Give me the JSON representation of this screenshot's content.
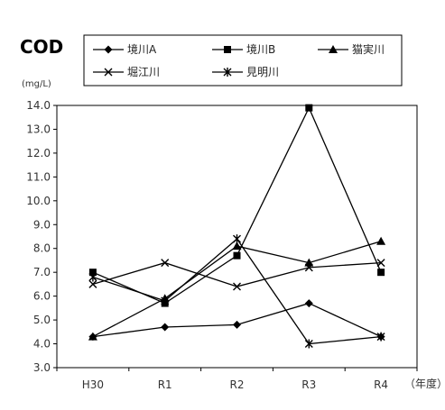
{
  "chart_data": {
    "type": "line",
    "title": "COD",
    "ylabel": "(mg/L)",
    "xlabel": "（年度）",
    "categories": [
      "H30",
      "R1",
      "R2",
      "R3",
      "R4"
    ],
    "ylim": [
      3.0,
      14.0
    ],
    "yticks": [
      "3.0",
      "4.0",
      "5.0",
      "6.0",
      "7.0",
      "8.0",
      "9.0",
      "10.0",
      "11.0",
      "12.0",
      "13.0",
      "14.0"
    ],
    "grid": false,
    "legend_position": "top",
    "series": [
      {
        "name": "境川A",
        "marker": "diamond",
        "values": [
          4.3,
          4.7,
          4.8,
          5.7,
          4.3
        ]
      },
      {
        "name": "境川B",
        "marker": "square",
        "values": [
          7.0,
          5.7,
          7.7,
          13.9,
          7.0
        ]
      },
      {
        "name": "猫実川",
        "marker": "triangle",
        "values": [
          4.3,
          5.9,
          8.1,
          7.4,
          8.3
        ]
      },
      {
        "name": "堀江川",
        "marker": "x",
        "values": [
          6.5,
          7.4,
          6.4,
          7.2,
          7.4
        ]
      },
      {
        "name": "見明川",
        "marker": "star",
        "values": [
          6.8,
          5.8,
          8.4,
          4.0,
          4.3
        ]
      }
    ]
  }
}
